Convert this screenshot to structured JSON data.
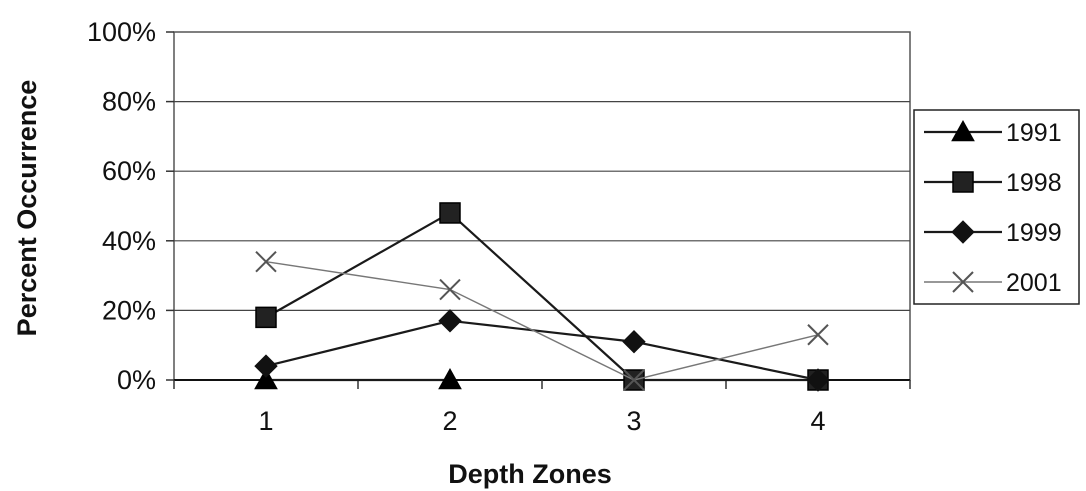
{
  "chart_data": {
    "type": "line",
    "title": "",
    "xlabel": "Depth Zones",
    "ylabel": "Percent Occurrence",
    "categories": [
      "1",
      "2",
      "3",
      "4"
    ],
    "y_ticks": [
      "0%",
      "20%",
      "40%",
      "60%",
      "80%",
      "100%"
    ],
    "ylim": [
      0,
      100
    ],
    "grid": "horizontal",
    "legend_position": "right",
    "series": [
      {
        "name": "1991",
        "marker": "triangle",
        "color": "#000000",
        "values": [
          0,
          0,
          null,
          null
        ]
      },
      {
        "name": "1998",
        "marker": "square",
        "color": "#222222",
        "values": [
          18,
          48,
          0,
          0
        ]
      },
      {
        "name": "1999",
        "marker": "diamond",
        "color": "#111111",
        "values": [
          4,
          17,
          11,
          0
        ]
      },
      {
        "name": "2001",
        "marker": "x",
        "color": "#6b6b6b",
        "values": [
          34,
          26,
          0,
          13
        ]
      }
    ]
  }
}
